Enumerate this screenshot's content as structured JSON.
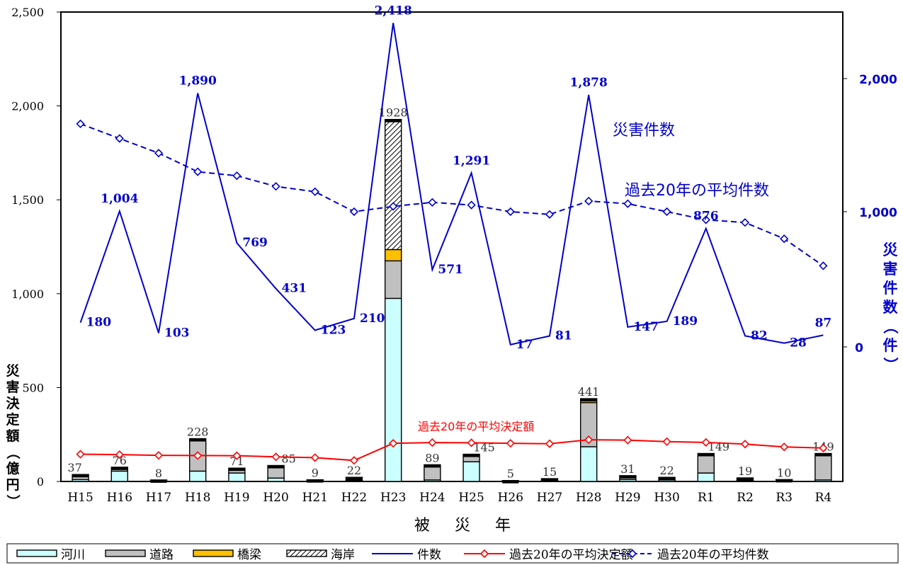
{
  "chart_data": {
    "type": "bar",
    "xlabel": "被 災 年",
    "ylabel_left": "災害決定額（億円）",
    "ylabel_right": "災害件数（件）",
    "categories": [
      "H15",
      "H16",
      "H17",
      "H18",
      "H19",
      "H20",
      "H21",
      "H22",
      "H23",
      "H24",
      "H25",
      "H26",
      "H27",
      "H28",
      "H29",
      "H30",
      "R1",
      "R2",
      "R3",
      "R4"
    ],
    "ylim_left": [
      0,
      2500
    ],
    "ylim_right": [
      0,
      2500
    ],
    "left_ticks": [
      "0",
      "500",
      "1,000",
      "1,500",
      "2,000",
      "2,500"
    ],
    "right_ticks": [
      "0",
      "1,000",
      "2,000"
    ],
    "bar_series": [
      {
        "name": "河川",
        "color": "#ccffff",
        "values": [
          10,
          55,
          3,
          55,
          45,
          18,
          3,
          5,
          975,
          8,
          105,
          2,
          5,
          185,
          10,
          8,
          45,
          5,
          3,
          8
        ]
      },
      {
        "name": "道路",
        "color": "#c0c0c0",
        "values": [
          27,
          21,
          5,
          173,
          26,
          55,
          6,
          17,
          200,
          81,
          40,
          3,
          10,
          235,
          21,
          14,
          104,
          14,
          7,
          141
        ]
      },
      {
        "name": "橋梁",
        "color": "#ffc000",
        "values": [
          0,
          0,
          0,
          0,
          0,
          12,
          0,
          0,
          60,
          0,
          0,
          0,
          0,
          21,
          0,
          0,
          0,
          0,
          0,
          0
        ]
      },
      {
        "name": "海岸",
        "color": "#d9d9d9",
        "pattern": "hatch",
        "values": [
          0,
          0,
          0,
          0,
          0,
          0,
          0,
          0,
          693,
          0,
          0,
          0,
          0,
          0,
          0,
          0,
          0,
          0,
          0,
          0
        ]
      }
    ],
    "bar_totals": [
      "37",
      "76",
      "8",
      "228",
      "71",
      "85",
      "9",
      "22",
      "1928",
      "89",
      "145",
      "5",
      "15",
      "441",
      "31",
      "22",
      "149",
      "19",
      "10",
      "149"
    ],
    "line_series": [
      {
        "name": "件数",
        "color": "#0000cc",
        "axis": "right",
        "style": "solid",
        "values": [
          180,
          1004,
          103,
          1890,
          769,
          431,
          123,
          210,
          2418,
          571,
          1291,
          17,
          81,
          1878,
          147,
          189,
          876,
          82,
          28,
          87
        ],
        "labels": [
          "180",
          "1,004",
          "103",
          "1,890",
          "769",
          "431",
          "123",
          "210",
          "2,418",
          "571",
          "1,291",
          "17",
          "81",
          "1,878",
          "147",
          "189",
          "876",
          "82",
          "28",
          "87"
        ]
      },
      {
        "name": "過去20年の平均決定額",
        "color": "#ff0000",
        "axis": "left",
        "style": "solid",
        "marker": "diamond",
        "values": [
          145,
          143,
          139,
          138,
          137,
          131,
          127,
          112,
          203,
          207,
          206,
          203,
          201,
          222,
          220,
          212,
          208,
          199,
          184,
          178
        ]
      },
      {
        "name": "過去20年の平均件数",
        "color": "#0000cc",
        "axis": "right",
        "style": "dashed",
        "marker": "diamond",
        "values": [
          1660,
          1550,
          1440,
          1300,
          1270,
          1190,
          1150,
          1000,
          1040,
          1070,
          1050,
          1000,
          980,
          1080,
          1060,
          1000,
          940,
          920,
          800,
          600
        ]
      }
    ],
    "annotations": {
      "count": "災害件数",
      "avg_count": "過去20年の平均件数",
      "avg_amount": "過去20年の平均決定額"
    },
    "legend": {
      "position": "bottom",
      "items": [
        {
          "label": "河川",
          "kind": "bar",
          "color": "#ccffff"
        },
        {
          "label": "道路",
          "kind": "bar",
          "color": "#c0c0c0"
        },
        {
          "label": "橋梁",
          "kind": "bar",
          "color": "#ffc000"
        },
        {
          "label": "海岸",
          "kind": "hatch",
          "color": "#d9d9d9"
        },
        {
          "label": "件数",
          "kind": "line",
          "color": "#0000cc"
        },
        {
          "label": "過去20年の平均決定額",
          "kind": "line-marker",
          "color": "#ff0000"
        },
        {
          "label": "過去20年の平均件数",
          "kind": "dash-marker",
          "color": "#0000cc"
        }
      ]
    }
  }
}
